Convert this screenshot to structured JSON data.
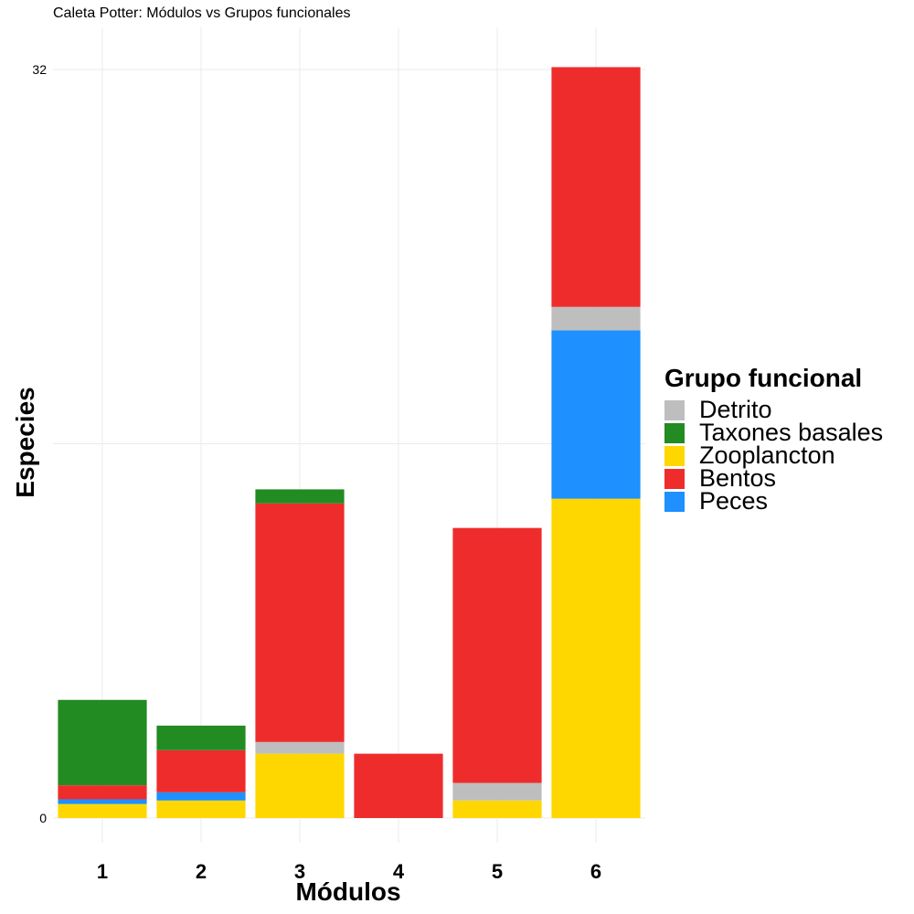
{
  "chart_data": {
    "type": "bar",
    "stacked": true,
    "title": "Caleta Potter: Módulos vs Grupos funcionales",
    "xlabel": "Módulos",
    "ylabel": "Especies",
    "categories": [
      "1",
      "2",
      "3",
      "4",
      "5",
      "6"
    ],
    "ylim": [
      0,
      32
    ],
    "yticks": [
      "0",
      "32"
    ],
    "grid": true,
    "legend_position": "right",
    "legend_title": "Grupo funcional",
    "legend_order": [
      "Detrito",
      "Taxones basales",
      "Zooplancton",
      "Bentos",
      "Peces"
    ],
    "stack_order": [
      "Zooplancton",
      "Peces",
      "Detrito",
      "Bentos",
      "Taxones basales"
    ],
    "series": [
      {
        "name": "Detrito",
        "color": "#BEBEBE",
        "values": [
          0,
          0,
          0.5,
          0,
          0.75,
          1
        ]
      },
      {
        "name": "Taxones basales",
        "color": "#228B22",
        "values": [
          3.65,
          1.05,
          0.6,
          0,
          0,
          0
        ]
      },
      {
        "name": "Zooplancton",
        "color": "#FFD700",
        "values": [
          0.6,
          0.75,
          2.75,
          0,
          0.75,
          13.65
        ]
      },
      {
        "name": "Bentos",
        "color": "#EE2C2C",
        "values": [
          0.6,
          1.8,
          10.2,
          2.75,
          10.9,
          10.25
        ]
      },
      {
        "name": "Peces",
        "color": "#1E90FF",
        "values": [
          0.2,
          0.35,
          0,
          0,
          0,
          7.2
        ]
      }
    ]
  }
}
